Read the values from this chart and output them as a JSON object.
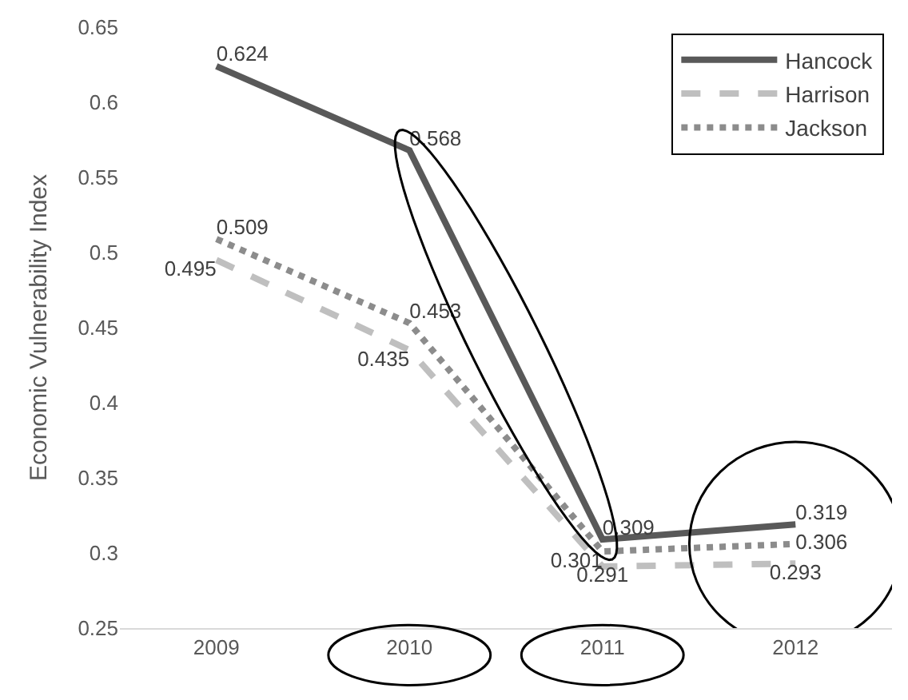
{
  "chart_data": {
    "type": "line",
    "ylabel": "Economic Vulnerability Index",
    "categories": [
      "2009",
      "2010",
      "2011",
      "2012"
    ],
    "series": [
      {
        "name": "Hancock",
        "color": "#595959",
        "line_style": "solid",
        "values": [
          0.624,
          0.568,
          0.309,
          0.319
        ]
      },
      {
        "name": "Harrison",
        "color": "#bfbfbf",
        "line_style": "dashed",
        "values": [
          0.495,
          0.435,
          0.291,
          0.293
        ]
      },
      {
        "name": "Jackson",
        "color": "#8c8c8c",
        "line_style": "dotted",
        "values": [
          0.509,
          0.453,
          0.301,
          0.306
        ]
      }
    ],
    "ylim": [
      0.25,
      0.65
    ],
    "yticks": [
      0.25,
      0.3,
      0.35,
      0.4,
      0.45,
      0.5,
      0.55,
      0.6,
      0.65
    ],
    "legend": "top right",
    "marker": "none",
    "data_labels": true
  }
}
